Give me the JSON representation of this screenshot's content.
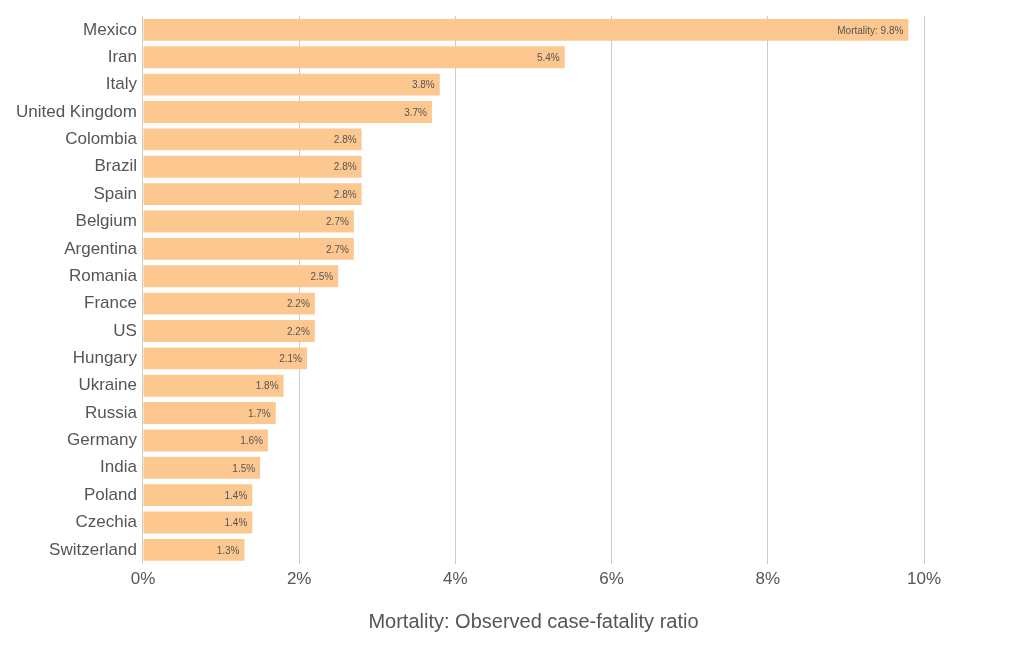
{
  "chart_data": {
    "type": "bar",
    "orientation": "horizontal",
    "xlabel": "Mortality: Observed case-fatality ratio",
    "categories": [
      "Mexico",
      "Iran",
      "Italy",
      "United Kingdom",
      "Colombia",
      "Brazil",
      "Spain",
      "Belgium",
      "Argentina",
      "Romania",
      "France",
      "US",
      "Hungary",
      "Ukraine",
      "Russia",
      "Germany",
      "India",
      "Poland",
      "Czechia",
      "Switzerland"
    ],
    "values": [
      9.8,
      5.4,
      3.8,
      3.7,
      2.8,
      2.8,
      2.8,
      2.7,
      2.7,
      2.5,
      2.2,
      2.2,
      2.1,
      1.8,
      1.7,
      1.6,
      1.5,
      1.4,
      1.4,
      1.3
    ],
    "value_labels": [
      "Mortality: 9.8%",
      "5.4%",
      "3.8%",
      "3.7%",
      "2.8%",
      "2.8%",
      "2.8%",
      "2.7%",
      "2.7%",
      "2.5%",
      "2.2%",
      "2.2%",
      "2.1%",
      "1.8%",
      "1.7%",
      "1.6%",
      "1.5%",
      "1.4%",
      "1.4%",
      "1.3%"
    ],
    "data_labels": true,
    "color": "#fdc890",
    "xlim": [
      0,
      10
    ],
    "xticks": [
      {
        "value": 0,
        "label": "0%"
      },
      {
        "value": 2,
        "label": "2%"
      },
      {
        "value": 4,
        "label": "4%"
      },
      {
        "value": 6,
        "label": "6%"
      },
      {
        "value": 8,
        "label": "8%"
      },
      {
        "value": 10,
        "label": "10%"
      }
    ],
    "grid": true
  }
}
